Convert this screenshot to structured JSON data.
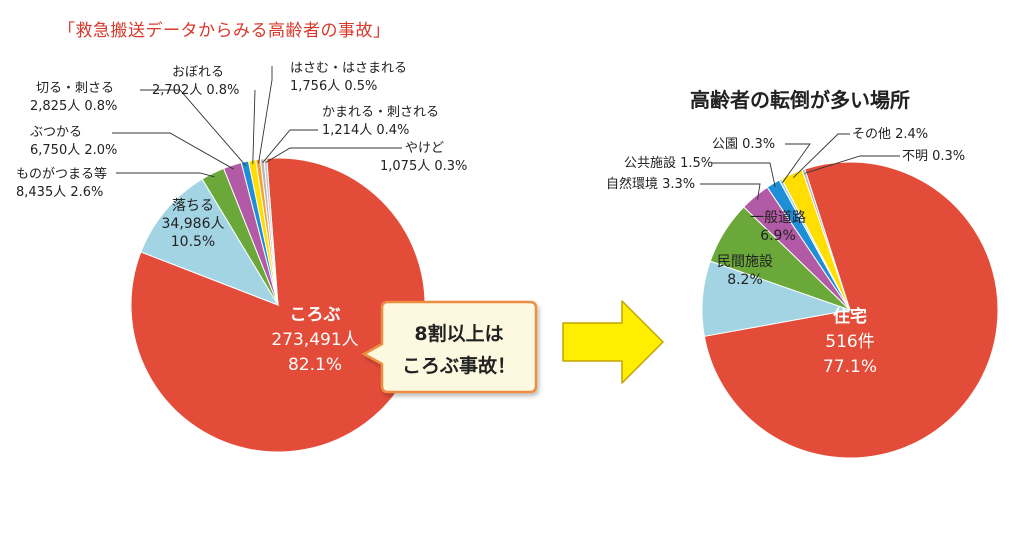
{
  "colors": {
    "red": "#e44c3a",
    "lightblue": "#a3d4e3",
    "green": "#6aa83a",
    "purple": "#b25aa5",
    "blue": "#1e8fd6",
    "yellow": "#ffde00",
    "orange": "#f3a233",
    "grey": "#b8b8b8",
    "callout_fill": "#fdf9e1",
    "callout_border": "#ee8e3f",
    "arrow_fill": "#ffee00",
    "arrow_stroke": "#c3a400"
  },
  "callout": {
    "line1": "8割以上は",
    "line2": "ころぶ事故！"
  },
  "chart_data": [
    {
      "type": "pie",
      "title": "「救急搬送データからみる高齢者の事故」",
      "unit": "人",
      "slices": [
        {
          "label": "ころぶ",
          "value_text": "273,491人",
          "pct_text": "82.1%",
          "percent": 82.1,
          "color": "#e44c3a"
        },
        {
          "label": "落ちる",
          "value_text": "34,986人",
          "pct_text": "10.5%",
          "percent": 10.5,
          "color": "#a3d4e3"
        },
        {
          "label": "ものがつまる等",
          "value_text": "8,435人 2.6%",
          "percent": 2.6,
          "color": "#6aa83a"
        },
        {
          "label": "ぶつかる",
          "value_text": "6,750人 2.0%",
          "percent": 2.0,
          "color": "#b25aa5"
        },
        {
          "label": "切る・刺さる",
          "value_text": "2,825人 0.8%",
          "percent": 0.8,
          "color": "#1e8fd6"
        },
        {
          "label": "おぼれる",
          "value_text": "2,702人 0.8%",
          "percent": 0.8,
          "color": "#ffde00"
        },
        {
          "label": "はさむ・はさまれる",
          "value_text": "1,756人 0.5%",
          "percent": 0.5,
          "color": "#f3a233"
        },
        {
          "label": "かまれる・刺される",
          "value_text": "1,214人 0.4%",
          "percent": 0.4,
          "color": "#b8b8b8"
        },
        {
          "label": "やけど",
          "value_text": "1,075人 0.3%",
          "percent": 0.3,
          "color": "#c6c6c6"
        }
      ]
    },
    {
      "type": "pie",
      "title": "高齢者の転倒が多い場所",
      "unit": "件",
      "slices": [
        {
          "label": "住宅",
          "value_text": "516件",
          "pct_text": "77.1%",
          "percent": 77.1,
          "color": "#e44c3a"
        },
        {
          "label": "民間施設",
          "pct_text": "8.2%",
          "percent": 8.2,
          "color": "#a3d4e3"
        },
        {
          "label": "一般道路",
          "pct_text": "6.9%",
          "percent": 6.9,
          "color": "#6aa83a"
        },
        {
          "label": "自然環境 3.3%",
          "percent": 3.3,
          "color": "#b25aa5"
        },
        {
          "label": "公共施設 1.5%",
          "percent": 1.5,
          "color": "#1e8fd6"
        },
        {
          "label": "公園 0.3%",
          "percent": 0.3,
          "color": "#a3d4e3"
        },
        {
          "label": "その他 2.4%",
          "percent": 2.4,
          "color": "#ffde00"
        },
        {
          "label": "不明 0.3%",
          "percent": 0.3,
          "color": "#b8b8b8"
        }
      ]
    }
  ]
}
